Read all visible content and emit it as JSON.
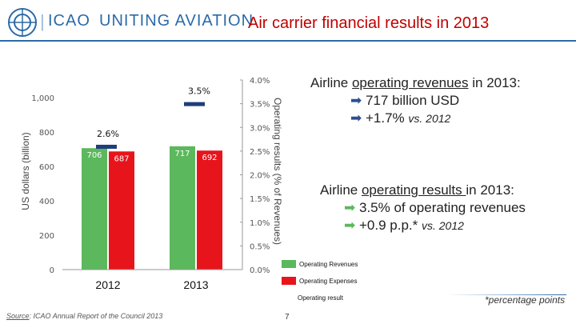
{
  "header": {
    "logo_text": "ICAO",
    "slogan": "UNITING AVIATION",
    "title": "Air carrier financial results in 2013"
  },
  "chart_data": {
    "type": "bar",
    "categories": [
      "2012",
      "2013"
    ],
    "series": [
      {
        "name": "Operating Revenues",
        "values": [
          706,
          717
        ],
        "color": "#5cb85c"
      },
      {
        "name": "Operating Expenses",
        "values": [
          687,
          692
        ],
        "color": "#e8141b"
      },
      {
        "name": "Operating result",
        "values": [
          2.6,
          3.5
        ],
        "color": "#1f3d7a",
        "axis": "right"
      }
    ],
    "left_axis": {
      "label": "US dollars (billion)",
      "ticks": [
        "0",
        "200",
        "400",
        "600",
        "800",
        "1,000"
      ],
      "ylim": [
        0,
        1100
      ]
    },
    "right_axis": {
      "label": "Operating results (% of Revenues)",
      "ticks": [
        "0.0%",
        "0.5%",
        "1.0%",
        "1.5%",
        "2.0%",
        "2.5%",
        "3.0%",
        "3.5%",
        "4.0%"
      ],
      "ylim": [
        0,
        4.0
      ]
    },
    "bar_labels": [
      "706",
      "687",
      "717",
      "692"
    ],
    "result_labels": [
      "2.6%",
      "3.5%"
    ]
  },
  "panels": {
    "revenues": {
      "prefix": "Airline ",
      "emph": "operating revenues",
      "suffix": " in 2013:",
      "lines": [
        "717 billion USD",
        "+1.7% "
      ],
      "vs": "vs. 2012"
    },
    "results": {
      "prefix": "Airline ",
      "emph": "operating results ",
      "suffix": "in 2013:",
      "lines": [
        "3.5% of operating revenues",
        "+0.9 p.p.* "
      ],
      "vs": "vs. 2012"
    }
  },
  "legend": [
    "Operating Revenues",
    "Operating Expenses",
    "Operating result"
  ],
  "footnote": "*percentage points",
  "source": {
    "label": "Source",
    "text": ": ICAO Annual Report of the Council 2013"
  },
  "page_number": "7",
  "colors": {
    "revenues": "#5cb85c",
    "expenses": "#e8141b",
    "result": "#1f3d7a",
    "title": "#c00000",
    "brand": "#2b6aa8"
  }
}
